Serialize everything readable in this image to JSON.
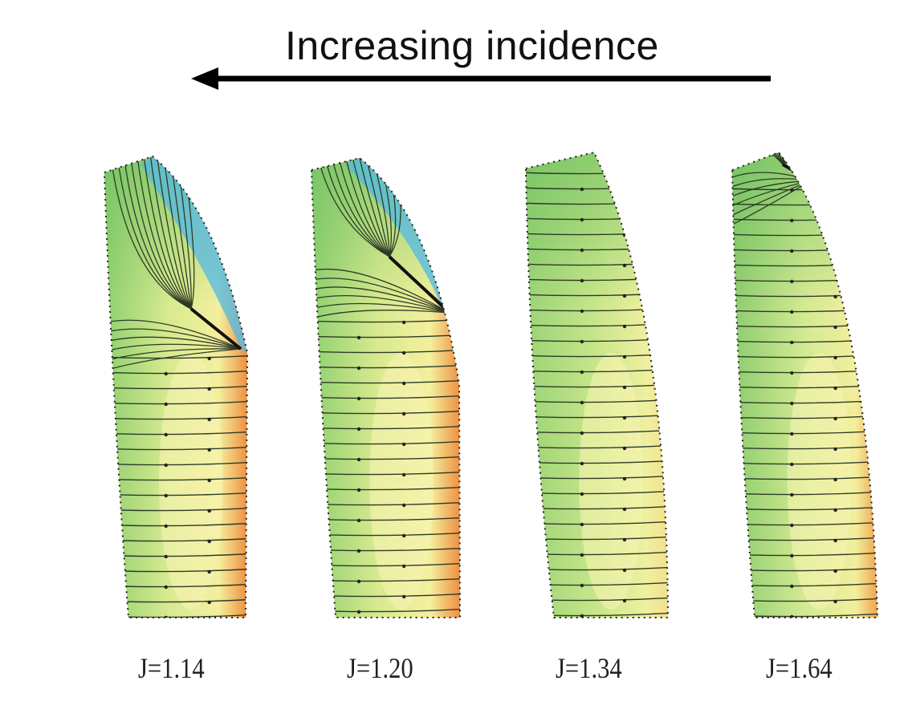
{
  "title": "Increasing incidence",
  "arrow_direction": "left",
  "panels": [
    {
      "label": "J=1.14",
      "separation": "strong"
    },
    {
      "label": "J=1.20",
      "separation": "moderate"
    },
    {
      "label": "J=1.34",
      "separation": "none"
    },
    {
      "label": "J=1.64",
      "separation": "slight tip"
    }
  ],
  "colors": {
    "green": "#7cc46a",
    "yellow": "#f2f09a",
    "blue": "#45b6e8",
    "orange": "#f08a3a",
    "streamline": "#2e3a26"
  }
}
